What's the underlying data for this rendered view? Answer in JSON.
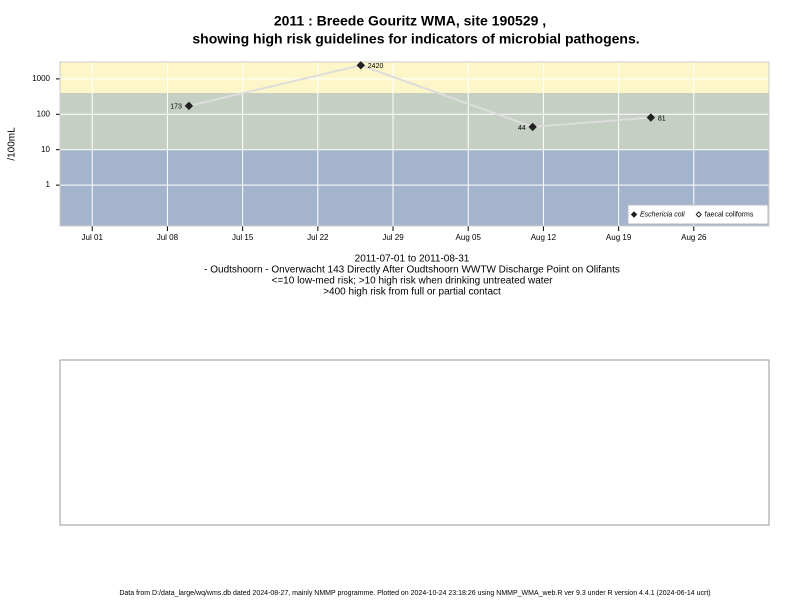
{
  "chart_data": {
    "type": "line",
    "title": "2011 : Breede Gouritz WMA, site 190529 ,",
    "title_line2": "showing high risk guidelines for indicators of microbial pathogens.",
    "subtitle_lines": [
      "2011-07-01 to 2011-08-31",
      "- Oudtshoorn - Onverwacht 143 Directly After Oudtshoorn WWTW Discharge Point on Olifants",
      "<=10 low-med risk; >10 high risk when drinking untreated water",
      ">400 high risk from full or partial contact"
    ],
    "y_label": "/100mL",
    "log_y": true,
    "grid": true,
    "legend_position": "bottom-right",
    "x": [
      "2011-07-10",
      "2011-07-26",
      "2011-08-11",
      "2011-08-22"
    ],
    "series": [
      {
        "name": "Eschericia coli",
        "color": "#222222",
        "line_color": "#dddddd",
        "values": [
          173,
          2420,
          44,
          81
        ]
      },
      {
        "name": "faecal coliforms",
        "color": "#222222",
        "values": [
          null,
          null,
          null,
          null
        ]
      }
    ],
    "xlim": [
      "2011-06-28",
      "2011-09-02"
    ],
    "xticks": [
      {
        "value": "2011-07-01",
        "label": "Jul 01"
      },
      {
        "value": "2011-07-08",
        "label": "Jul 08"
      },
      {
        "value": "2011-07-15",
        "label": "Jul 15"
      },
      {
        "value": "2011-07-22",
        "label": "Jul 22"
      },
      {
        "value": "2011-07-29",
        "label": "Jul 29"
      },
      {
        "value": "2011-08-05",
        "label": "Aug 05"
      },
      {
        "value": "2011-08-12",
        "label": "Aug 12"
      },
      {
        "value": "2011-08-19",
        "label": "Aug 19"
      },
      {
        "value": "2011-08-26",
        "label": "Aug 26"
      }
    ],
    "ylim": [
      0.07,
      3000
    ],
    "yticks": [
      1,
      10,
      100,
      1000
    ],
    "band_breaks": [
      10,
      400
    ],
    "band_colors": [
      "#a3b4cc",
      "#c6cfc4",
      "#fdf6c8"
    ],
    "footer": "Data from D:/data_large/wq/wms.db dated 2024-08-27, mainly NMMP programme. Plotted on 2024-10-24 23:18:26 using NMMP_WMA_web.R ver 9.3 under R version 4.4.1 (2024-06-14 ucrt)"
  }
}
